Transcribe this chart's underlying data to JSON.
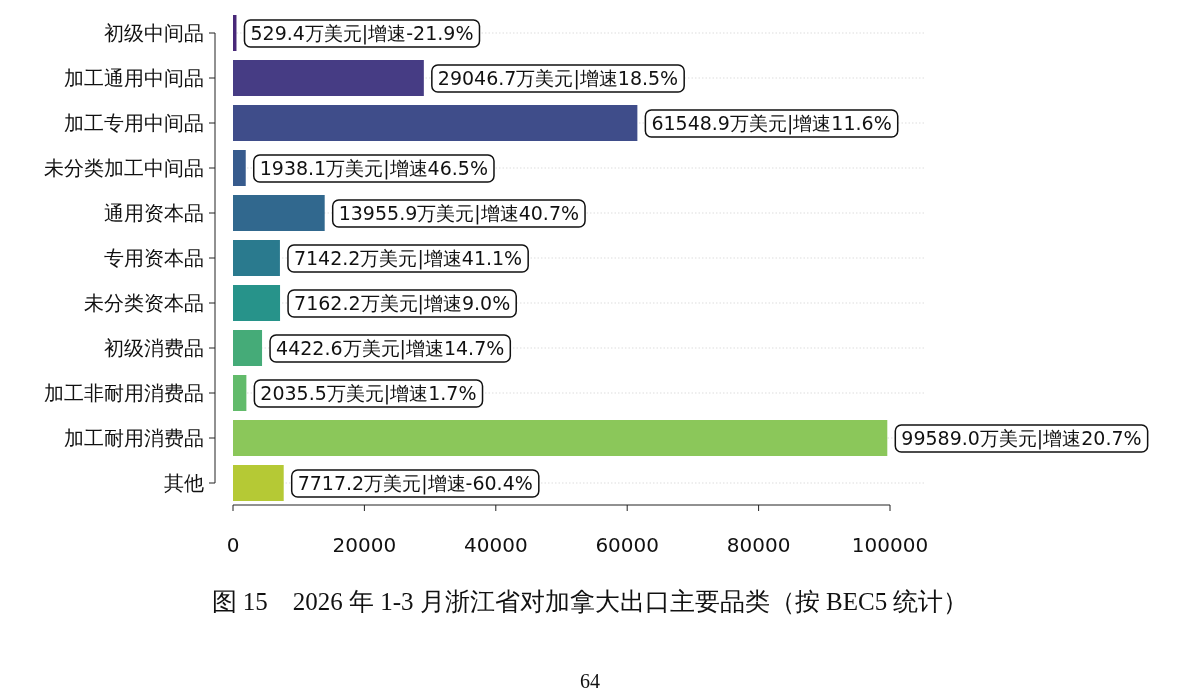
{
  "chart_data": {
    "type": "bar",
    "orientation": "horizontal",
    "title": "图 15　2026 年 1-3 月浙江省对加拿大出口主要品类（按 BEC5 统计）",
    "annotations": [
      "64"
    ],
    "categories": [
      "初级中间品",
      "加工通用中间品",
      "加工专用中间品",
      "未分类加工中间品",
      "通用资本品",
      "专用资本品",
      "未分类资本品",
      "初级消费品",
      "加工非耐用消费品",
      "加工耐用消费品",
      "其他"
    ],
    "values": [
      529.4,
      29046.7,
      61548.9,
      1938.1,
      13955.9,
      7142.2,
      7162.2,
      4422.6,
      2035.5,
      99589.0,
      7717.2
    ],
    "value_labels": [
      "529.4万美元|增速-21.9%",
      "29046.7万美元|增速18.5%",
      "61548.9万美元|增速11.6%",
      "1938.1万美元|增速46.5%",
      "13955.9万美元|增速40.7%",
      "7142.2万美元|增速41.1%",
      "7162.2万美元|增速9.0%",
      "4422.6万美元|增速14.7%",
      "2035.5万美元|增速1.7%",
      "99589.0万美元|增速20.7%",
      "7717.2万美元|增速-60.4%"
    ],
    "colors": [
      "#482878",
      "#463c84",
      "#3f4d8a",
      "#375b8d",
      "#31688e",
      "#2a7a8e",
      "#27938a",
      "#45ab78",
      "#62bb6b",
      "#8bc75a",
      "#b5c935"
    ],
    "xlim": [
      0,
      100000
    ],
    "xticks": [
      0,
      20000,
      40000,
      60000,
      80000,
      100000
    ],
    "grid": "y"
  }
}
